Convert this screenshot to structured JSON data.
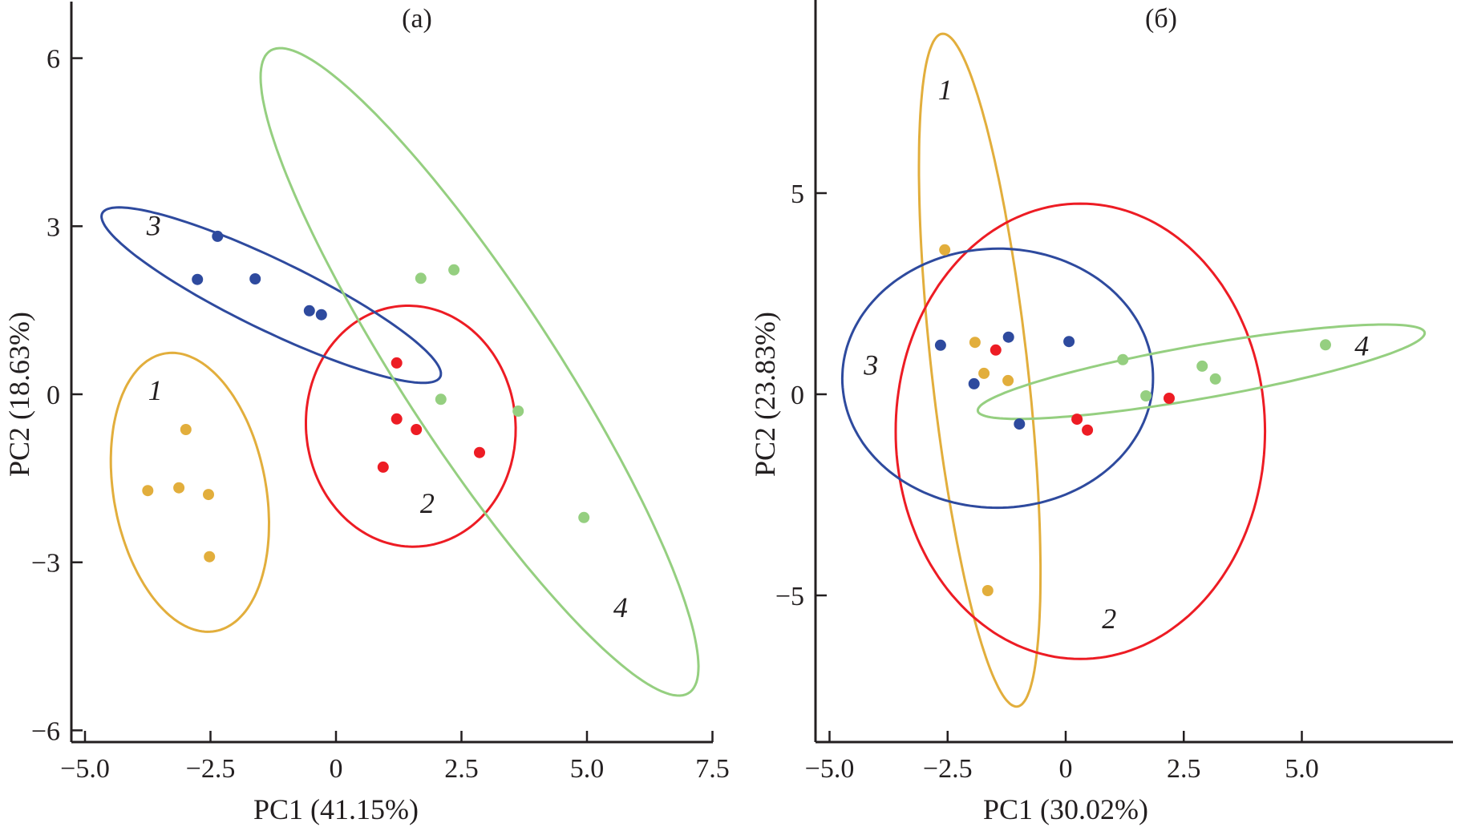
{
  "colors": {
    "1": "#e2ae3c",
    "2": "#ed1c24",
    "3": "#2e4a9e",
    "4": "#95cf80"
  },
  "chart_data": [
    {
      "type": "scatter",
      "title": "(a)",
      "xlabel": "PC1 (41.15%)",
      "ylabel": "PC2 (18.63%)",
      "xlim": [
        -5.5,
        7.5
      ],
      "ylim": [
        -6.2,
        7.0
      ],
      "xticks": [
        -5.0,
        -2.5,
        0,
        2.5,
        5.0,
        7.5
      ],
      "xtick_labels": [
        "−5.0",
        "−2.5",
        "0",
        "2.5",
        "5.0",
        "7.5"
      ],
      "yticks": [
        6,
        3,
        0,
        -3,
        -6
      ],
      "ytick_labels": [
        "6",
        "3",
        "0",
        "−3",
        "−6"
      ],
      "grid": false,
      "legend": "none",
      "series": [
        {
          "name": "1",
          "color_key": "1",
          "points": [
            [
              -2.99,
              -0.63
            ],
            [
              -3.75,
              -1.72
            ],
            [
              -3.13,
              -1.67
            ],
            [
              -2.54,
              -1.79
            ],
            [
              -2.52,
              -2.9
            ]
          ],
          "ellipse": {
            "cx": -2.91,
            "cy": -1.75,
            "a": 2.53,
            "b": 1.51,
            "angle": -77.2
          },
          "label": "1",
          "label_pos": [
            -3.6,
            0.02
          ]
        },
        {
          "name": "2",
          "color_key": "2",
          "points": [
            [
              1.21,
              0.56
            ],
            [
              1.21,
              -0.44
            ],
            [
              1.6,
              -0.63
            ],
            [
              0.94,
              -1.3
            ],
            [
              2.86,
              -1.04
            ]
          ],
          "ellipse": {
            "cx": 1.49,
            "cy": -0.57,
            "a": 2.16,
            "b": 2.08,
            "angle": -70
          },
          "label": "2",
          "label_pos": [
            1.82,
            -2.0
          ]
        },
        {
          "name": "3",
          "color_key": "3",
          "points": [
            [
              -2.36,
              2.82
            ],
            [
              -2.76,
              2.05
            ],
            [
              -1.61,
              2.06
            ],
            [
              -0.53,
              1.49
            ],
            [
              -0.29,
              1.42
            ]
          ],
          "ellipse": {
            "cx": -1.29,
            "cy": 1.77,
            "a": 3.67,
            "b": 0.64,
            "angle": -23.3
          },
          "label": "3",
          "label_pos": [
            -3.63,
            2.96
          ]
        },
        {
          "name": "4",
          "color_key": "4",
          "points": [
            [
              1.69,
              2.07
            ],
            [
              2.35,
              2.22
            ],
            [
              2.09,
              -0.09
            ],
            [
              3.63,
              -0.3
            ],
            [
              4.94,
              -2.2
            ]
          ],
          "ellipse": {
            "cx": 2.86,
            "cy": 0.4,
            "a": 7.09,
            "b": 1.47,
            "angle": -53.7
          },
          "label": "4",
          "label_pos": [
            5.67,
            -3.86
          ]
        }
      ]
    },
    {
      "type": "scatter",
      "title": "(б)",
      "xlabel": "PC1 (30.02%)",
      "ylabel": "PC2 (23.83%)",
      "xlim": [
        -5.3,
        8.2
      ],
      "ylim": [
        -8.6,
        9.8
      ],
      "xticks": [
        -5.0,
        -2.5,
        0,
        2.5,
        5.0
      ],
      "xtick_labels": [
        "−5.0",
        "−2.5",
        "0",
        "2.5",
        "5.0"
      ],
      "yticks": [
        5,
        0,
        -5
      ],
      "ytick_labels": [
        "5",
        "0",
        "−5"
      ],
      "grid": false,
      "legend": "none",
      "series": [
        {
          "name": "1",
          "color_key": "1",
          "points": [
            [
              -2.56,
              3.59
            ],
            [
              -1.92,
              1.29
            ],
            [
              -1.73,
              0.52
            ],
            [
              -1.22,
              0.34
            ],
            [
              -1.65,
              -4.88
            ]
          ],
          "ellipse": {
            "cx": -1.82,
            "cy": 0.6,
            "a": 8.4,
            "b": 1.02,
            "angle": -84.6
          },
          "label": "1",
          "label_pos": [
            -2.55,
            7.5
          ]
        },
        {
          "name": "2",
          "color_key": "2",
          "points": [
            [
              -1.48,
              1.1
            ],
            [
              0.24,
              -0.62
            ],
            [
              0.46,
              -0.89
            ],
            [
              2.19,
              -0.1
            ]
          ],
          "ellipse": {
            "cx": 0.31,
            "cy": -0.92,
            "a": 3.91,
            "b": 5.66,
            "angle": 0
          },
          "label": "2",
          "label_pos": [
            0.92,
            -5.65
          ]
        },
        {
          "name": "3",
          "color_key": "3",
          "points": [
            [
              -2.65,
              1.22
            ],
            [
              -1.21,
              1.42
            ],
            [
              0.07,
              1.31
            ],
            [
              -1.94,
              0.26
            ],
            [
              -0.98,
              -0.74
            ]
          ],
          "ellipse": {
            "cx": -1.44,
            "cy": 0.4,
            "a": 3.29,
            "b": 3.22,
            "angle": 4
          },
          "label": "3",
          "label_pos": [
            -4.12,
            0.65
          ]
        },
        {
          "name": "4",
          "color_key": "4",
          "points": [
            [
              1.21,
              0.86
            ],
            [
              1.7,
              -0.04
            ],
            [
              2.89,
              0.7
            ],
            [
              3.17,
              0.38
            ],
            [
              5.5,
              1.23
            ]
          ],
          "ellipse": {
            "cx": 2.87,
            "cy": 0.56,
            "a": 4.83,
            "b": 0.66,
            "angle": 11.7
          },
          "label": "4",
          "label_pos": [
            6.27,
            1.13
          ]
        }
      ]
    }
  ]
}
